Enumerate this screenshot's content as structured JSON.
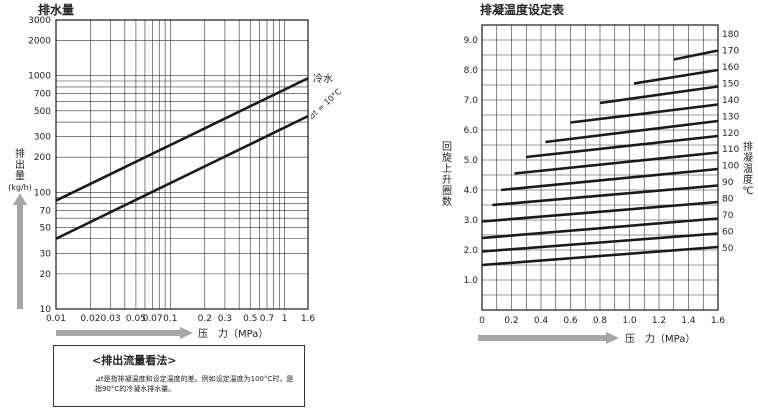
{
  "chart_data": [
    {
      "type": "line",
      "title": "排水量",
      "xlabel": "压　力（MPa）",
      "ylabel": [
        "排",
        "出",
        "量",
        "(kg/h)"
      ],
      "x_scale": "log",
      "y_scale": "log",
      "xlim": [
        0.01,
        1.6
      ],
      "ylim": [
        10,
        3000
      ],
      "x_ticks": [
        0.01,
        0.02,
        0.03,
        0.05,
        0.07,
        0.1,
        0.2,
        0.3,
        0.5,
        0.7,
        1,
        1.6
      ],
      "x_tick_labels": [
        "0.01",
        "0.02",
        "0.03",
        "0.05",
        "0.07",
        "0.1",
        "0.2",
        "0.3",
        "0.5",
        "0.7",
        "1",
        "1.6"
      ],
      "y_ticks": [
        10,
        20,
        30,
        50,
        70,
        100,
        200,
        300,
        500,
        700,
        1000,
        2000,
        3000
      ],
      "y_tick_labels": [
        "10",
        "20",
        "30",
        "50",
        "70",
        "100",
        "200",
        "300",
        "500",
        "700",
        "1000",
        "2000",
        "3000"
      ],
      "grid": true,
      "series": [
        {
          "name": "冷水",
          "x": [
            0.01,
            1.6
          ],
          "y": [
            85,
            950
          ]
        },
        {
          "name": "⊿t = 10°C",
          "x": [
            0.01,
            1.6
          ],
          "y": [
            40,
            450
          ]
        }
      ]
    },
    {
      "type": "line",
      "title": "排凝温度设定表",
      "xlabel": "压　力（MPa）",
      "ylabel": [
        "回",
        "旋",
        "上",
        "升",
        "圈",
        "数"
      ],
      "y2label": [
        "排",
        "凝",
        "温",
        "度",
        "℃"
      ],
      "xlim": [
        0,
        1.6
      ],
      "ylim": [
        0,
        9.5
      ],
      "x_ticks": [
        0,
        0.2,
        0.4,
        0.6,
        0.8,
        1.0,
        1.2,
        1.4,
        1.6
      ],
      "x_tick_labels": [
        "0",
        "0.2",
        "0.4",
        "0.6",
        "0.8",
        "1.0",
        "1.2",
        "1.4",
        "1.6"
      ],
      "y_ticks": [
        1.0,
        2.0,
        3.0,
        4.0,
        5.0,
        6.0,
        7.0,
        8.0,
        9.0
      ],
      "y_tick_labels": [
        "1.0",
        "2.0",
        "3.0",
        "4.0",
        "5.0",
        "6.0",
        "7.0",
        "8.0",
        "9.0"
      ],
      "grid": true,
      "series": [
        {
          "name": "50",
          "x": [
            0,
            1.6
          ],
          "y": [
            1.5,
            2.1
          ]
        },
        {
          "name": "60",
          "x": [
            0,
            1.6
          ],
          "y": [
            1.95,
            2.55
          ]
        },
        {
          "name": "70",
          "x": [
            0,
            1.6
          ],
          "y": [
            2.4,
            3.05
          ]
        },
        {
          "name": "80",
          "x": [
            0,
            1.6
          ],
          "y": [
            2.95,
            3.6
          ]
        },
        {
          "name": "90",
          "x": [
            0.07,
            1.6
          ],
          "y": [
            3.5,
            4.15
          ]
        },
        {
          "name": "100",
          "x": [
            0.13,
            1.6
          ],
          "y": [
            4.0,
            4.7
          ]
        },
        {
          "name": "110",
          "x": [
            0.22,
            1.6
          ],
          "y": [
            4.55,
            5.25
          ]
        },
        {
          "name": "120",
          "x": [
            0.3,
            1.6
          ],
          "y": [
            5.1,
            5.8
          ]
        },
        {
          "name": "130",
          "x": [
            0.43,
            1.6
          ],
          "y": [
            5.6,
            6.3
          ]
        },
        {
          "name": "140",
          "x": [
            0.6,
            1.6
          ],
          "y": [
            6.25,
            6.85
          ]
        },
        {
          "name": "150",
          "x": [
            0.8,
            1.6
          ],
          "y": [
            6.9,
            7.45
          ]
        },
        {
          "name": "160",
          "x": [
            1.03,
            1.6
          ],
          "y": [
            7.55,
            8.0
          ]
        },
        {
          "name": "170",
          "x": [
            1.3,
            1.6
          ],
          "y": [
            8.35,
            8.65
          ]
        }
      ],
      "y2_tick_labels": [
        "50",
        "60",
        "70",
        "80",
        "90",
        "100",
        "110",
        "120",
        "130",
        "140",
        "150",
        "160",
        "170",
        "180"
      ]
    }
  ],
  "note": {
    "title": "<排出流量看法>",
    "text": "⊿t是指排凝温度和设定温度的差。例如设定温度为100°C时，是指90°C的冷凝水排水量。"
  },
  "colors": {
    "line": "#1a1a1a",
    "grid": "#333333",
    "arrow": "#a6a6a6"
  }
}
